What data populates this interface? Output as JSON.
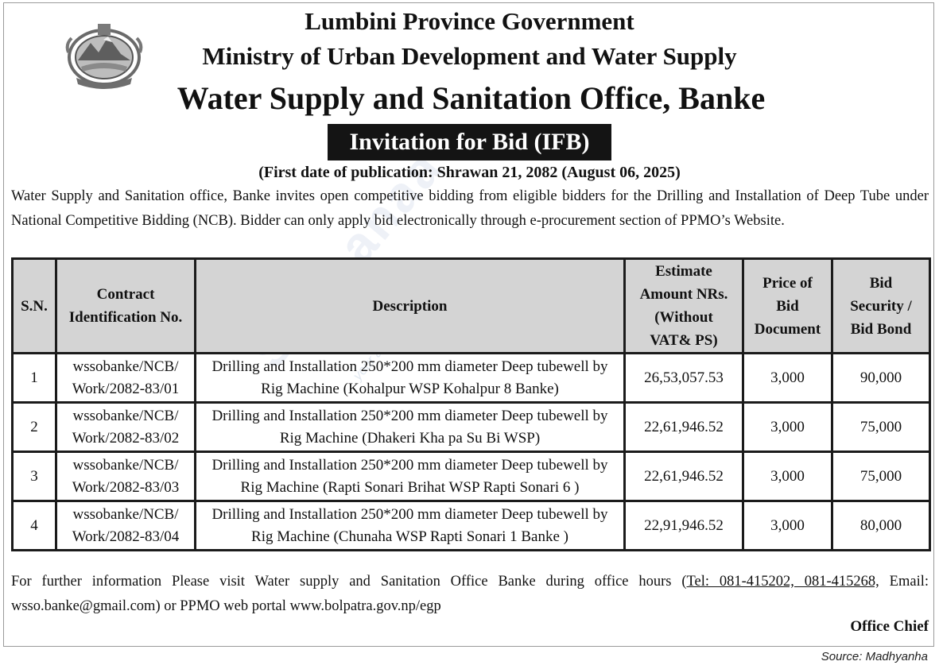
{
  "header": {
    "line1": "Lumbini Province Government",
    "line2": "Ministry of Urban Development and Water Supply",
    "line3": "Water Supply and Sanitation Office, Banke",
    "notice_title": "Invitation for Bid (IFB)",
    "publication_date": "(First date of publication: Shrawan 21, 2082 (August 06, 2025)"
  },
  "intro_text": "Water Supply and Sanitation office, Banke invites open competitive bidding from eligible bidders for the Drilling and Installation of Deep Tube under National Competitive Bidding (NCB). Bidder can only apply bid electronically through e-procurement section of PPMO’s Website.",
  "table": {
    "headers": {
      "sn": "S.N.",
      "contract_id": "Contract Identification No.",
      "description": "Description",
      "estimate": "Estimate Amount NRs. (Without VAT& PS)",
      "price": "Price of Bid Document",
      "security": "Bid Security / Bid Bond"
    },
    "rows": [
      {
        "sn": "1",
        "contract_id": "wssobanke/NCB/ Work/2082-83/01",
        "description": "Drilling and Installation 250*200 mm diameter Deep tubewell by Rig Machine (Kohalpur WSP Kohalpur 8 Banke)",
        "estimate": "26,53,057.53",
        "price": "3,000",
        "security": "90,000"
      },
      {
        "sn": "2",
        "contract_id": "wssobanke/NCB/ Work/2082-83/02",
        "description": "Drilling and Installation 250*200 mm diameter Deep tubewell by Rig Machine (Dhakeri Kha pa Su Bi WSP)",
        "estimate": "22,61,946.52",
        "price": "3,000",
        "security": "75,000"
      },
      {
        "sn": "3",
        "contract_id": "wssobanke/NCB/ Work/2082-83/03",
        "description": "Drilling and Installation 250*200 mm diameter Deep tubewell by Rig Machine (Rapti Sonari Brihat WSP Rapti Sonari 6 )",
        "estimate": "22,61,946.52",
        "price": "3,000",
        "security": "75,000"
      },
      {
        "sn": "4",
        "contract_id": "wssobanke/NCB/ Work/2082-83/04",
        "description": "Drilling and Installation 250*200 mm diameter Deep tubewell by Rig Machine (Chunaha WSP Rapti Sonari 1 Banke )",
        "estimate": "22,91,946.52",
        "price": "3,000",
        "security": "80,000"
      }
    ]
  },
  "footer": {
    "info_prefix": "For further information Please visit Water supply and Sanitation Office Banke during office hours (",
    "tel": "Tel: 081-415202, 081-415268,",
    "info_suffix": " Email: wsso.banke@gmail.com) or PPMO web portal www.bolpatra.gov.np/egp",
    "signatory": "Office Chief",
    "source": "Source: Madhyanha"
  },
  "watermark": {
    "brand": "Suchanaa",
    "tagline": "your access to local news"
  },
  "colors": {
    "header_fill": "#d4d4d4",
    "title_bar": "#141414",
    "border": "#1b1b1b"
  }
}
